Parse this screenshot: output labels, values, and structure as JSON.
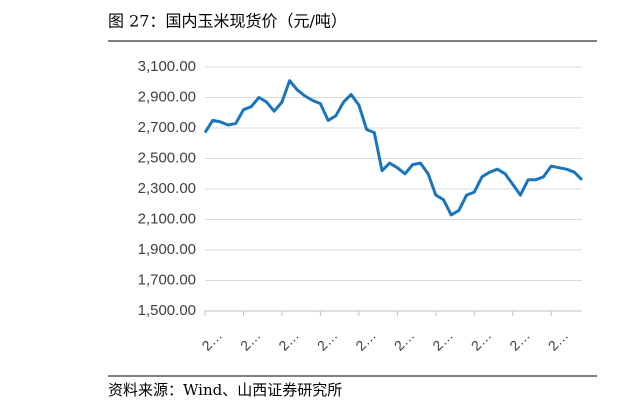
{
  "chart_data": {
    "type": "line",
    "title": "图 27：国内玉米现货价（元/吨）",
    "source": "资料来源：Wind、山西证券研究所",
    "categories": [
      "2…",
      null,
      null,
      null,
      null,
      "2…",
      null,
      null,
      null,
      null,
      "2…",
      null,
      null,
      null,
      null,
      "2…",
      null,
      null,
      null,
      null,
      "2…",
      null,
      null,
      null,
      null,
      "2…",
      null,
      null,
      null,
      null,
      "2…",
      null,
      null,
      null,
      null,
      "2…",
      null,
      null,
      null,
      null,
      "2…",
      null,
      null,
      null,
      null,
      "2…",
      null,
      null,
      null,
      null
    ],
    "series": [
      {
        "color": "#1a75bc",
        "values": [
          2670,
          2750,
          2740,
          2720,
          2730,
          2820,
          2840,
          2900,
          2870,
          2810,
          2870,
          3010,
          2950,
          2910,
          2880,
          2860,
          2750,
          2780,
          2870,
          2920,
          2850,
          2690,
          2670,
          2420,
          2470,
          2440,
          2400,
          2460,
          2470,
          2400,
          2260,
          2230,
          2130,
          2160,
          2260,
          2280,
          2380,
          2410,
          2430,
          2400,
          2330,
          2260,
          2360,
          2360,
          2380,
          2450,
          2440,
          2430,
          2410,
          2360
        ]
      }
    ],
    "ylim": [
      1500,
      3100
    ],
    "yticks": [
      {
        "value": 1500,
        "label": "1,500.00"
      },
      {
        "value": 1700,
        "label": "1,700.00"
      },
      {
        "value": 1900,
        "label": "1,900.00"
      },
      {
        "value": 2100,
        "label": "2,100.00"
      },
      {
        "value": 2300,
        "label": "2,300.00"
      },
      {
        "value": 2500,
        "label": "2,500.00"
      },
      {
        "value": 2700,
        "label": "2,700.00"
      },
      {
        "value": 2900,
        "label": "2,900.00"
      },
      {
        "value": 3100,
        "label": "3,100.00"
      }
    ],
    "grid": true
  }
}
